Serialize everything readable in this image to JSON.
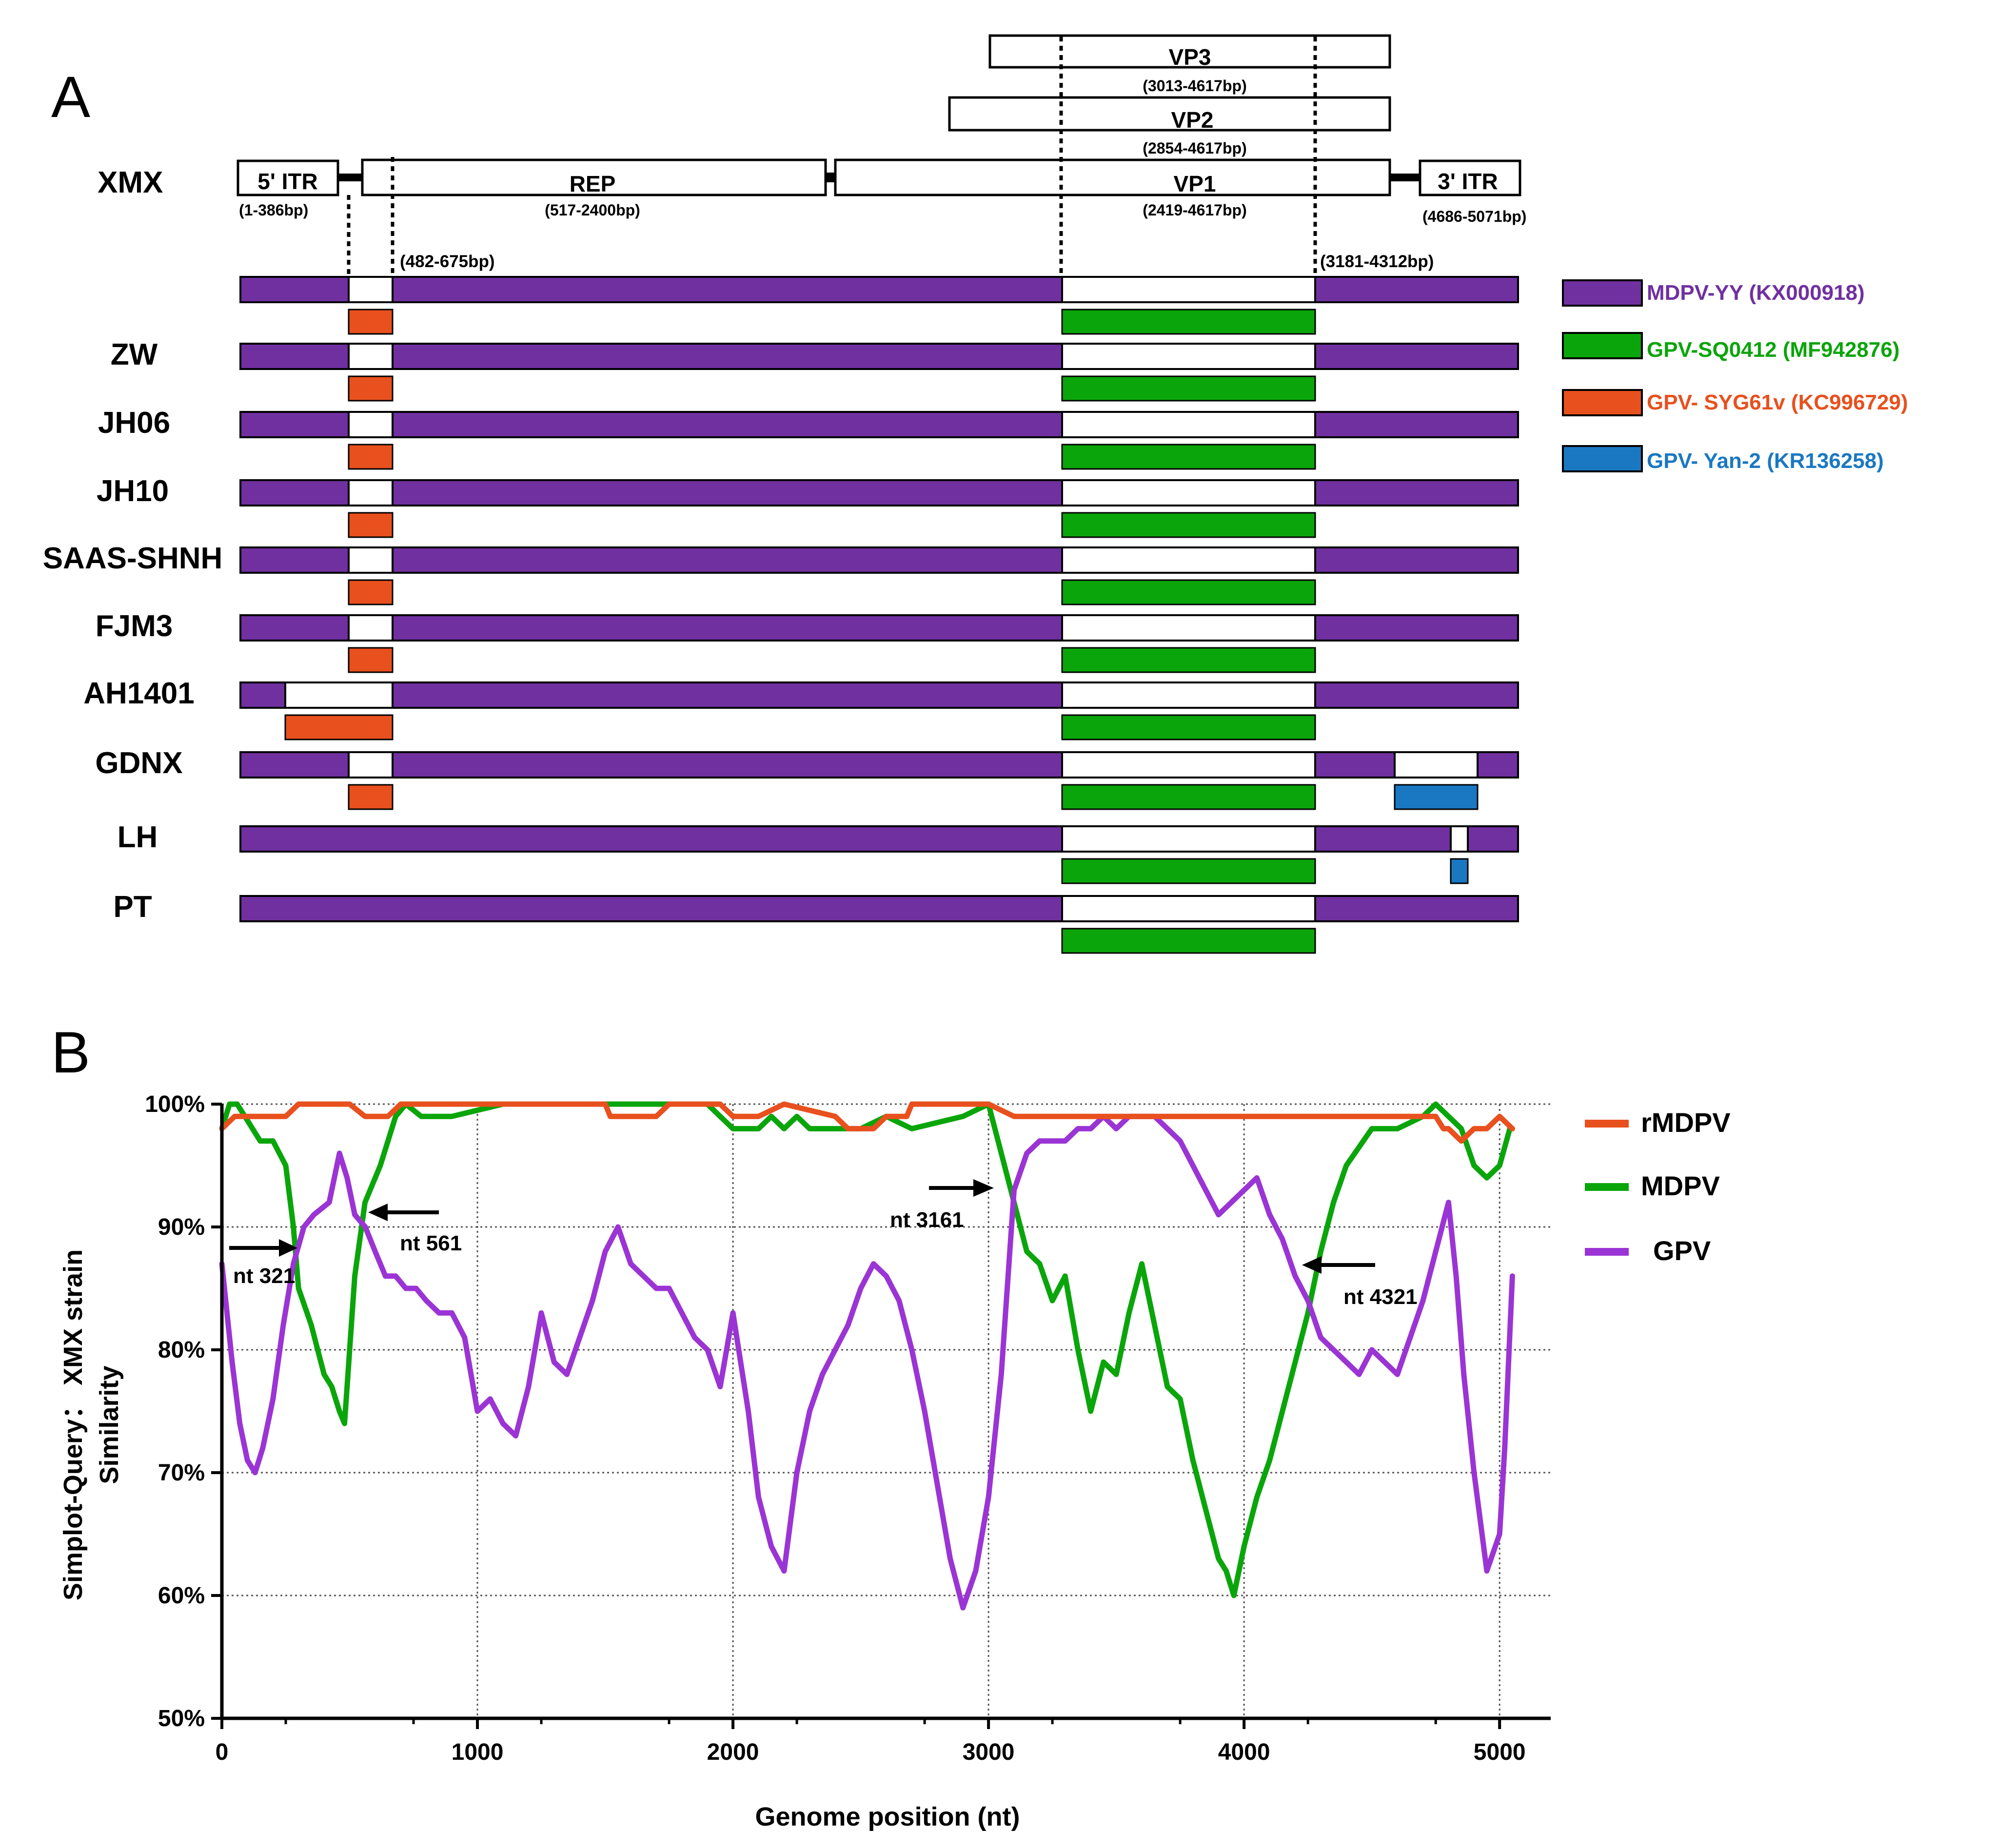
{
  "panel_a": {
    "letter": "A",
    "reference": {
      "name": "XMX",
      "genes": [
        {
          "name": "5' ITR",
          "range": "(1-386bp)"
        },
        {
          "name": "REP",
          "range": "(517-2400bp)"
        },
        {
          "name": "VP1",
          "range": "(2419-4617bp)"
        },
        {
          "name": "VP2",
          "range": "(2854-4617bp)"
        },
        {
          "name": "VP3",
          "range": "(3013-4617bp)"
        },
        {
          "name": "3' ITR",
          "range": "(4686-5071bp)"
        }
      ],
      "breakpoint_labels": [
        "(482-675bp)",
        "(3181-4312bp)"
      ]
    },
    "strains": [
      {
        "label": ""
      },
      {
        "label": "ZW"
      },
      {
        "label": "JH06"
      },
      {
        "label": "JH10"
      },
      {
        "label": "SAAS-SHNH"
      },
      {
        "label": "FJM3"
      },
      {
        "label": "AH1401"
      },
      {
        "label": "GDNX"
      },
      {
        "label": "LH"
      },
      {
        "label": "PT"
      }
    ],
    "legend": [
      {
        "label": "MDPV-YY (KX000918)",
        "color": "#7030a0"
      },
      {
        "label": "GPV-SQ0412 (MF942876)",
        "color": "#0aa50a"
      },
      {
        "label": "GPV- SYG61v (KC996729)",
        "color": "#e8501e"
      },
      {
        "label": "GPV- Yan-2 (KR136258)",
        "color": "#1a78c2"
      }
    ]
  },
  "chart_data": {
    "type": "line",
    "panel_letter": "B",
    "xlabel": "Genome position (nt)",
    "ylabel_line1": "Simplot-Query： XMX strain",
    "ylabel_line2": "Similarity",
    "xlim": [
      0,
      5200
    ],
    "ylim": [
      50,
      100
    ],
    "xticks": [
      0,
      1000,
      2000,
      3000,
      4000,
      5000
    ],
    "yticks": [
      50,
      60,
      70,
      80,
      90,
      100
    ],
    "ytick_labels": [
      "50%",
      "60%",
      "70%",
      "80%",
      "90%",
      "100%"
    ],
    "grid": true,
    "legend_position": "right",
    "series": [
      {
        "name": "rMDPV",
        "color": "#e8501e",
        "x": [
          0,
          50,
          100,
          250,
          300,
          450,
          500,
          560,
          600,
          650,
          700,
          760,
          800,
          1000,
          1200,
          1400,
          1500,
          1520,
          1700,
          1750,
          1800,
          1950,
          2000,
          2100,
          2200,
          2400,
          2450,
          2500,
          2550,
          2600,
          2680,
          2700,
          2800,
          3000,
          3100,
          3200,
          3500,
          3600,
          3800,
          4000,
          4200,
          4400,
          4500,
          4700,
          4750,
          4780,
          4800,
          4850,
          4900,
          4950,
          5000,
          5050
        ],
        "y": [
          98,
          99,
          99,
          99,
          100,
          100,
          100,
          99,
          99,
          99,
          100,
          100,
          100,
          100,
          100,
          100,
          100,
          99,
          99,
          100,
          100,
          100,
          99,
          99,
          100,
          99,
          98,
          98,
          98,
          99,
          99,
          100,
          100,
          100,
          99,
          99,
          99,
          99,
          99,
          99,
          99,
          99,
          99,
          99,
          99,
          98,
          98,
          97,
          98,
          98,
          99,
          98
        ]
      },
      {
        "name": "MDPV",
        "color": "#0aa50a",
        "x": [
          0,
          30,
          60,
          120,
          150,
          200,
          250,
          280,
          300,
          350,
          400,
          430,
          460,
          480,
          500,
          520,
          560,
          620,
          680,
          720,
          780,
          900,
          1100,
          1300,
          1500,
          1700,
          1900,
          2000,
          2100,
          2150,
          2200,
          2250,
          2300,
          2400,
          2500,
          2600,
          2700,
          2900,
          3000,
          3050,
          3100,
          3150,
          3200,
          3250,
          3300,
          3350,
          3400,
          3450,
          3500,
          3550,
          3600,
          3650,
          3700,
          3750,
          3800,
          3850,
          3900,
          3930,
          3960,
          4000,
          4050,
          4100,
          4150,
          4200,
          4250,
          4300,
          4350,
          4400,
          4500,
          4550,
          4600,
          4700,
          4750,
          4800,
          4850,
          4900,
          4950,
          5000,
          5040
        ],
        "y": [
          98,
          100,
          100,
          98,
          97,
          97,
          95,
          90,
          85,
          82,
          78,
          77,
          75,
          74,
          80,
          86,
          92,
          95,
          99,
          100,
          99,
          99,
          100,
          100,
          100,
          100,
          100,
          98,
          98,
          99,
          98,
          99,
          98,
          98,
          98,
          99,
          98,
          99,
          100,
          96,
          92,
          88,
          87,
          84,
          86,
          80,
          75,
          79,
          78,
          83,
          87,
          82,
          77,
          76,
          71,
          67,
          63,
          62,
          60,
          64,
          68,
          71,
          75,
          79,
          83,
          88,
          92,
          95,
          98,
          98,
          98,
          99,
          100,
          99,
          98,
          95,
          94,
          95,
          98
        ]
      },
      {
        "name": "GPV",
        "color": "#9b34d4",
        "x": [
          0,
          40,
          70,
          100,
          130,
          160,
          200,
          240,
          280,
          321,
          360,
          420,
          460,
          490,
          520,
          561,
          600,
          640,
          680,
          720,
          760,
          800,
          850,
          900,
          950,
          1000,
          1050,
          1100,
          1150,
          1200,
          1250,
          1300,
          1350,
          1400,
          1450,
          1500,
          1550,
          1600,
          1650,
          1700,
          1750,
          1800,
          1850,
          1900,
          1950,
          2000,
          2030,
          2060,
          2100,
          2150,
          2200,
          2250,
          2300,
          2350,
          2400,
          2450,
          2500,
          2550,
          2600,
          2650,
          2700,
          2750,
          2800,
          2850,
          2900,
          2950,
          3000,
          3050,
          3100,
          3150,
          3200,
          3250,
          3300,
          3350,
          3400,
          3450,
          3500,
          3550,
          3600,
          3650,
          3700,
          3750,
          3800,
          3850,
          3900,
          3950,
          4000,
          4050,
          4100,
          4150,
          4200,
          4250,
          4300,
          4350,
          4400,
          4450,
          4500,
          4550,
          4600,
          4650,
          4700,
          4750,
          4800,
          4830,
          4860,
          4900,
          4950,
          5000,
          5020,
          5050
        ],
        "y": [
          87,
          79,
          74,
          71,
          70,
          72,
          76,
          82,
          87,
          90,
          91,
          92,
          96,
          94,
          91,
          90,
          88,
          86,
          86,
          85,
          85,
          84,
          83,
          83,
          81,
          75,
          76,
          74,
          73,
          77,
          83,
          79,
          78,
          81,
          84,
          88,
          90,
          87,
          86,
          85,
          85,
          83,
          81,
          80,
          77,
          83,
          79,
          75,
          68,
          64,
          62,
          70,
          75,
          78,
          80,
          82,
          85,
          87,
          86,
          84,
          80,
          75,
          69,
          63,
          59,
          62,
          68,
          78,
          93,
          96,
          97,
          97,
          97,
          98,
          98,
          99,
          98,
          99,
          99,
          99,
          98,
          97,
          95,
          93,
          91,
          92,
          93,
          94,
          91,
          89,
          86,
          84,
          81,
          80,
          79,
          78,
          80,
          79,
          78,
          81,
          84,
          88,
          92,
          86,
          78,
          70,
          62,
          65,
          72,
          86
        ]
      }
    ],
    "annotations": [
      "nt 321",
      "nt 561",
      "nt 3161",
      "nt 4321"
    ]
  }
}
